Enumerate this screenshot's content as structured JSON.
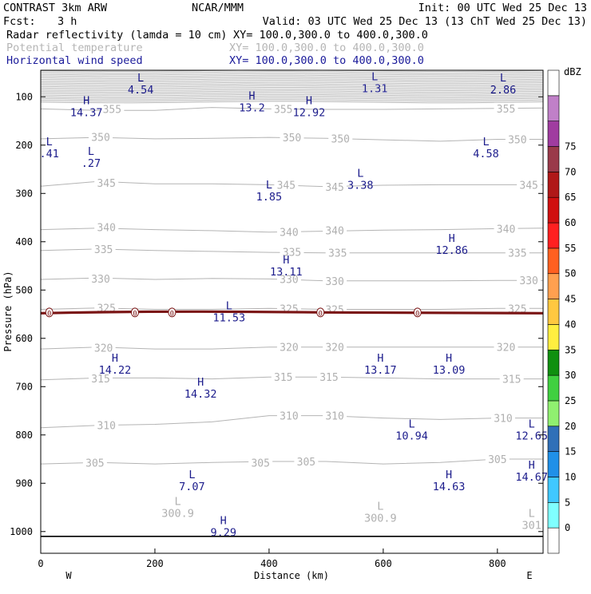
{
  "header": {
    "model": "CONTRAST  3km ARW",
    "center": "NCAR/MMM",
    "init": "Init: 00 UTC Wed 25 Dec 13",
    "fcst_label": "Fcst:",
    "fcst_value": "3 h",
    "valid": "Valid: 03 UTC Wed 25 Dec 13 (13 ChT Wed 25 Dec 13)"
  },
  "fields": [
    {
      "name": "Radar reflectivity (lamda = 10 cm)",
      "xy": "XY= 100.0,300.0 to 400.0,300.0",
      "color": "#000000"
    },
    {
      "name": "Potential temperature",
      "xy": "XY= 100.0,300.0 to 400.0,300.0",
      "color": "#b5b5b5"
    },
    {
      "name": "Horizontal wind speed",
      "xy": "XY= 100.0,300.0 to 400.0,300.0",
      "color": "#1a1a9a"
    }
  ],
  "chart_data": {
    "type": "contour",
    "xlabel": "Distance (km)",
    "ylabel": "Pressure (hPa)",
    "xlim": [
      0,
      880
    ],
    "ylim": [
      1045,
      45
    ],
    "x_ticks": [
      0,
      200,
      400,
      600,
      800
    ],
    "y_ticks": [
      100,
      200,
      300,
      400,
      500,
      600,
      700,
      800,
      900,
      1000
    ],
    "x_end_labels": {
      "left": "W",
      "right": "E"
    },
    "surface_pressure": 1010,
    "isentropes": [
      {
        "theta": 355,
        "points": [
          [
            0,
            125
          ],
          [
            100,
            128
          ],
          [
            200,
            128
          ],
          [
            300,
            122
          ],
          [
            400,
            125
          ],
          [
            500,
            126
          ],
          [
            600,
            126
          ],
          [
            700,
            125
          ],
          [
            800,
            124
          ],
          [
            880,
            123
          ]
        ],
        "labels": [
          [
            125,
            125
          ],
          [
            425,
            125
          ],
          [
            815,
            124
          ]
        ]
      },
      {
        "theta": 350,
        "points": [
          [
            0,
            187
          ],
          [
            100,
            184
          ],
          [
            200,
            187
          ],
          [
            300,
            186
          ],
          [
            400,
            184
          ],
          [
            500,
            186
          ],
          [
            600,
            189
          ],
          [
            700,
            192
          ],
          [
            800,
            188
          ],
          [
            880,
            188
          ]
        ],
        "labels": [
          [
            105,
            183
          ],
          [
            440,
            184
          ],
          [
            525,
            186
          ],
          [
            835,
            188
          ]
        ]
      },
      {
        "theta": 345,
        "points": [
          [
            0,
            285
          ],
          [
            100,
            275
          ],
          [
            200,
            280
          ],
          [
            300,
            280
          ],
          [
            400,
            282
          ],
          [
            500,
            286
          ],
          [
            600,
            283
          ],
          [
            700,
            282
          ],
          [
            800,
            282
          ],
          [
            880,
            282
          ]
        ],
        "labels": [
          [
            115,
            278
          ],
          [
            430,
            282
          ],
          [
            515,
            286
          ],
          [
            855,
            282
          ]
        ]
      },
      {
        "theta": 340,
        "points": [
          [
            0,
            375
          ],
          [
            100,
            372
          ],
          [
            200,
            375
          ],
          [
            300,
            377
          ],
          [
            400,
            380
          ],
          [
            500,
            378
          ],
          [
            600,
            376
          ],
          [
            700,
            375
          ],
          [
            800,
            373
          ],
          [
            880,
            372
          ]
        ],
        "labels": [
          [
            115,
            370
          ],
          [
            435,
            380
          ],
          [
            515,
            376
          ],
          [
            815,
            373
          ]
        ]
      },
      {
        "theta": 335,
        "points": [
          [
            0,
            418
          ],
          [
            100,
            415
          ],
          [
            200,
            418
          ],
          [
            300,
            420
          ],
          [
            400,
            422
          ],
          [
            500,
            423
          ],
          [
            600,
            423
          ],
          [
            700,
            423
          ],
          [
            800,
            423
          ],
          [
            880,
            423
          ]
        ],
        "labels": [
          [
            110,
            415
          ],
          [
            440,
            421
          ],
          [
            520,
            423
          ],
          [
            835,
            423
          ]
        ]
      },
      {
        "theta": 330,
        "points": [
          [
            0,
            478
          ],
          [
            100,
            475
          ],
          [
            200,
            478
          ],
          [
            300,
            476
          ],
          [
            400,
            477
          ],
          [
            500,
            481
          ],
          [
            600,
            481
          ],
          [
            700,
            481
          ],
          [
            800,
            480
          ],
          [
            880,
            480
          ]
        ],
        "labels": [
          [
            105,
            476
          ],
          [
            435,
            477
          ],
          [
            515,
            481
          ],
          [
            855,
            480
          ]
        ]
      },
      {
        "theta": 325,
        "points": [
          [
            0,
            540
          ],
          [
            100,
            537
          ],
          [
            200,
            540
          ],
          [
            300,
            540
          ],
          [
            400,
            538
          ],
          [
            500,
            540
          ],
          [
            600,
            540
          ],
          [
            700,
            540
          ],
          [
            800,
            538
          ],
          [
            880,
            538
          ]
        ],
        "labels": [
          [
            115,
            537
          ],
          [
            435,
            538
          ],
          [
            515,
            540
          ],
          [
            835,
            538
          ]
        ]
      },
      {
        "theta": 320,
        "points": [
          [
            0,
            622
          ],
          [
            100,
            618
          ],
          [
            200,
            622
          ],
          [
            300,
            622
          ],
          [
            400,
            618
          ],
          [
            500,
            618
          ],
          [
            600,
            618
          ],
          [
            700,
            618
          ],
          [
            800,
            618
          ],
          [
            880,
            618
          ]
        ],
        "labels": [
          [
            110,
            619
          ],
          [
            435,
            618
          ],
          [
            515,
            618
          ],
          [
            815,
            618
          ]
        ]
      },
      {
        "theta": 315,
        "points": [
          [
            0,
            686
          ],
          [
            100,
            682
          ],
          [
            200,
            682
          ],
          [
            300,
            684
          ],
          [
            400,
            680
          ],
          [
            500,
            680
          ],
          [
            600,
            682
          ],
          [
            700,
            684
          ],
          [
            800,
            684
          ],
          [
            880,
            684
          ]
        ],
        "labels": [
          [
            105,
            683
          ],
          [
            425,
            680
          ],
          [
            505,
            680
          ],
          [
            825,
            684
          ]
        ]
      },
      {
        "theta": 310,
        "points": [
          [
            0,
            785
          ],
          [
            100,
            780
          ],
          [
            200,
            778
          ],
          [
            300,
            773
          ],
          [
            400,
            760
          ],
          [
            500,
            760
          ],
          [
            600,
            765
          ],
          [
            700,
            768
          ],
          [
            800,
            765
          ],
          [
            880,
            765
          ]
        ],
        "labels": [
          [
            115,
            780
          ],
          [
            435,
            760
          ],
          [
            515,
            760
          ],
          [
            810,
            765
          ]
        ]
      },
      {
        "theta": 305,
        "points": [
          [
            0,
            860
          ],
          [
            100,
            857
          ],
          [
            200,
            860
          ],
          [
            300,
            857
          ],
          [
            400,
            855
          ],
          [
            500,
            855
          ],
          [
            600,
            860
          ],
          [
            700,
            857
          ],
          [
            800,
            850
          ],
          [
            880,
            850
          ]
        ],
        "labels": [
          [
            95,
            857
          ],
          [
            385,
            857
          ],
          [
            465,
            855
          ],
          [
            800,
            850
          ]
        ]
      }
    ],
    "reflectivity_line": {
      "pressure": 548,
      "color": "#7a1414",
      "points_label": "0",
      "label_x": [
        15,
        165,
        230,
        490,
        660
      ]
    },
    "wind_extrema": [
      {
        "type": "L",
        "value": "4.54",
        "x": 175,
        "p": 68
      },
      {
        "type": "L",
        "value": "1.31",
        "x": 585,
        "p": 66
      },
      {
        "type": "L",
        "value": "2.86",
        "x": 810,
        "p": 68
      },
      {
        "type": "H",
        "value": "14.37",
        "x": 80,
        "p": 115
      },
      {
        "type": "H",
        "value": "13.2",
        "x": 370,
        "p": 105
      },
      {
        "type": "H",
        "value": "12.92",
        "x": 470,
        "p": 115
      },
      {
        "type": "L",
        "value": ".41",
        "x": 15,
        "p": 200
      },
      {
        "type": "L",
        "value": ".27",
        "x": 88,
        "p": 220
      },
      {
        "type": "L",
        "value": "4.58",
        "x": 780,
        "p": 200
      },
      {
        "type": "L",
        "value": "3.38",
        "x": 560,
        "p": 266
      },
      {
        "type": "L",
        "value": "1.85",
        "x": 400,
        "p": 290
      },
      {
        "type": "H",
        "value": "12.86",
        "x": 720,
        "p": 400
      },
      {
        "type": "H",
        "value": "13.11",
        "x": 430,
        "p": 445
      },
      {
        "type": "L",
        "value": "11.53",
        "x": 330,
        "p": 540
      },
      {
        "type": "H",
        "value": "14.22",
        "x": 130,
        "p": 648
      },
      {
        "type": "H",
        "value": "13.17",
        "x": 595,
        "p": 648
      },
      {
        "type": "H",
        "value": "13.09",
        "x": 715,
        "p": 648
      },
      {
        "type": "H",
        "value": "14.32",
        "x": 280,
        "p": 698
      },
      {
        "type": "L",
        "value": "10.94",
        "x": 650,
        "p": 785
      },
      {
        "type": "L",
        "value": "12.65",
        "x": 860,
        "p": 785
      },
      {
        "type": "L",
        "value": "7.07",
        "x": 265,
        "p": 890
      },
      {
        "type": "H",
        "value": "14.63",
        "x": 715,
        "p": 890
      },
      {
        "type": "H",
        "value": "14.67",
        "x": 860,
        "p": 870
      },
      {
        "type": "H",
        "value": "9.29",
        "x": 320,
        "p": 985
      }
    ],
    "theta_extrema": [
      {
        "type": "L",
        "value": "300.9",
        "x": 240,
        "p": 945
      },
      {
        "type": "L",
        "value": "300.9",
        "x": 595,
        "p": 955
      },
      {
        "type": "L",
        "value": "301",
        "x": 860,
        "p": 970
      }
    ],
    "colorbar": {
      "unit": "dBZ",
      "levels": [
        0,
        5,
        10,
        15,
        20,
        25,
        30,
        35,
        40,
        45,
        50,
        55,
        60,
        65,
        70,
        75
      ],
      "colors": [
        "#ffffff",
        "#80ffff",
        "#40c8ff",
        "#2090e8",
        "#3070b8",
        "#90f070",
        "#40d040",
        "#109010",
        "#ffee40",
        "#ffc840",
        "#ffa050",
        "#ff6020",
        "#ff2020",
        "#d01010",
        "#b01818",
        "#9a3a4a",
        "#a03ca0",
        "#c080c8",
        "#ffffff"
      ]
    }
  }
}
